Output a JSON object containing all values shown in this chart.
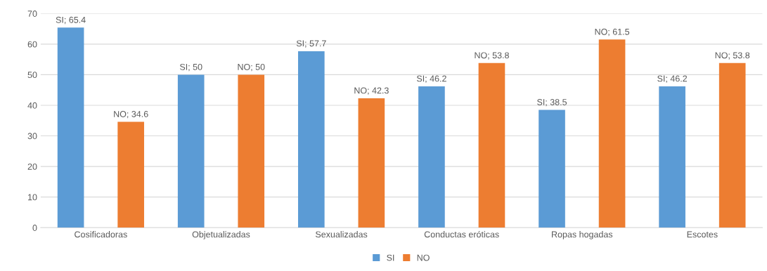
{
  "chart_data": {
    "type": "bar",
    "categories": [
      "Cosificadoras",
      "Objetualizadas",
      "Sexualizadas",
      "Conductas eróticas",
      "Ropas hogadas",
      "Escotes"
    ],
    "series": [
      {
        "name": "SI",
        "color": "#5b9bd5",
        "values": [
          65.4,
          50,
          57.7,
          46.2,
          38.5,
          46.2
        ],
        "value_labels": [
          "SI; 65.4",
          "SI; 50",
          "SI; 57.7",
          "SI; 46.2",
          "SI; 38.5",
          "SI; 46.2"
        ]
      },
      {
        "name": "NO",
        "color": "#ed7d31",
        "values": [
          34.6,
          50,
          42.3,
          53.8,
          61.5,
          53.8
        ],
        "value_labels": [
          "NO; 34.6",
          "NO; 50",
          "NO; 42.3",
          "NO; 53.8",
          "NO; 61.5",
          "NO; 53.8"
        ]
      }
    ],
    "ylim": [
      0,
      70
    ],
    "yticks": [
      0,
      10,
      20,
      30,
      40,
      50,
      60,
      70
    ],
    "grid": "y",
    "legend": "bottom"
  }
}
